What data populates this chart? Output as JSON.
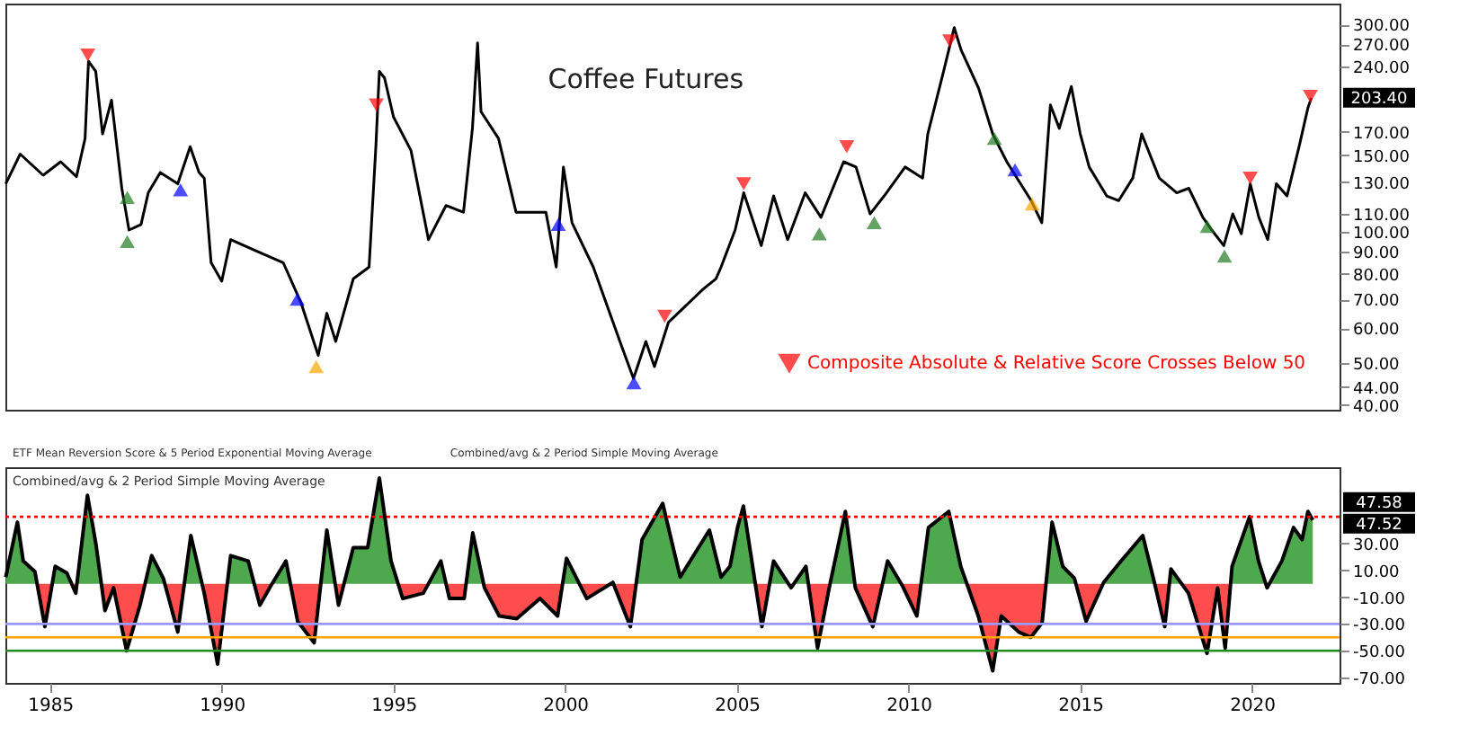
{
  "chart_data": [
    {
      "type": "line",
      "title": "Coffee Futures",
      "xlim": [
        1983.7,
        2022.55
      ],
      "xticks": [
        1985,
        1990,
        1995,
        2000,
        2005,
        2010,
        2015,
        2020
      ],
      "ylim": [
        39,
        335
      ],
      "log": true,
      "yticks": [
        {
          "value": 300,
          "label": "300.00"
        },
        {
          "value": 270,
          "label": "270.00"
        },
        {
          "value": 240,
          "label": "240.00"
        },
        {
          "value": 170,
          "label": "170.00"
        },
        {
          "value": 150,
          "label": "150.00"
        },
        {
          "value": 130,
          "label": "130.00"
        },
        {
          "value": 110,
          "label": "110.00"
        },
        {
          "value": 100,
          "label": "100.00"
        },
        {
          "value": 90,
          "label": "90.00"
        },
        {
          "value": 80,
          "label": "80.00"
        },
        {
          "value": 70,
          "label": "70.00"
        },
        {
          "value": 60,
          "label": "60.00"
        },
        {
          "value": 50,
          "label": "50.00"
        },
        {
          "value": 44,
          "label": "44.00"
        },
        {
          "value": 40,
          "label": "40.00"
        }
      ],
      "tick_labels": "y",
      "legend": "bottom right",
      "annotations": [
        "203.40"
      ],
      "series": [
        {
          "type": "line",
          "color": "#000000",
          "x": [
            1983.71,
            1984.13,
            1984.8,
            1985.31,
            1985.77,
            1986.02,
            1986.12,
            1986.33,
            1986.53,
            1986.79,
            1987.09,
            1987.3,
            1987.65,
            1987.86,
            1988.21,
            1988.72,
            1989.08,
            1989.34,
            1989.49,
            1989.69,
            1990.0,
            1990.26,
            1990.92,
            1991.79,
            1992.3,
            1992.81,
            1993.06,
            1993.32,
            1993.83,
            1994.29,
            1994.49,
            1994.59,
            1994.74,
            1995.0,
            1995.51,
            1995.77,
            1996.02,
            1996.53,
            1997.04,
            1997.3,
            1997.45,
            1997.55,
            1998.06,
            1998.57,
            1999.44,
            1999.74,
            1999.95,
            2000.2,
            2000.82,
            2001.63,
            2001.99,
            2002.35,
            2002.6,
            2003.01,
            2004.03,
            2004.39,
            2004.54,
            2004.95,
            2005.2,
            2005.71,
            2006.07,
            2006.48,
            2006.99,
            2007.45,
            2008.11,
            2008.47,
            2008.88,
            2009.29,
            2009.9,
            2010.41,
            2010.56,
            2011.02,
            2011.33,
            2011.53,
            2012.04,
            2012.45,
            2012.86,
            2013.57,
            2013.88,
            2014.13,
            2014.39,
            2014.74,
            2015.0,
            2015.26,
            2015.77,
            2016.12,
            2016.53,
            2016.79,
            2017.3,
            2017.81,
            2018.16,
            2018.57,
            2018.83,
            2019.18,
            2019.44,
            2019.69,
            2019.95,
            2020.2,
            2020.46,
            2020.71,
            2021.02,
            2021.38,
            2021.63,
            2021.73
          ],
          "values": [
            129,
            151,
            135,
            145,
            134,
            164,
            247,
            234,
            168,
            201,
            126,
            101,
            104,
            123,
            137,
            129,
            157,
            137,
            133,
            85,
            77,
            96,
            91,
            85,
            69,
            52,
            65,
            56,
            78,
            83,
            158,
            234,
            226,
            184,
            154,
            121,
            96,
            115,
            111,
            173,
            272,
            189,
            164,
            111,
            111,
            83,
            141,
            105,
            83,
            55,
            46,
            56,
            49,
            62,
            74,
            78,
            83,
            101,
            123,
            93,
            121,
            96,
            123,
            108,
            145,
            141,
            110,
            121,
            141,
            133,
            168,
            234,
            295,
            262,
            214,
            168,
            145,
            118,
            105,
            196,
            173,
            216,
            168,
            141,
            121,
            118,
            133,
            168,
            133,
            123,
            126,
            108,
            101,
            93,
            110,
            99,
            129,
            108,
            96,
            129,
            121,
            158,
            193,
            203.4
          ]
        },
        {
          "type": "scatter",
          "name": "Composite Absolute & Relative Score Crosses Below 50",
          "color": "#ff0000",
          "marker": "triangle-down",
          "x": [
            1986.1,
            1994.5,
            2002.9,
            2005.2,
            2008.2,
            2011.2,
            2019.95,
            2021.7
          ],
          "values": [
            255,
            196,
            64,
            129,
            157,
            275,
            133,
            205
          ]
        },
        {
          "type": "scatter",
          "color": "#1f7a1f",
          "marker": "triangle",
          "x": [
            1987.25,
            1987.25,
            2007.4,
            2009.0,
            2012.5,
            2018.7,
            2019.2
          ],
          "values": [
            120,
            95,
            99,
            105,
            164,
            103,
            88
          ]
        },
        {
          "type": "scatter",
          "color": "#0000ff",
          "marker": "triangle",
          "x": [
            1988.8,
            1992.2,
            1999.8,
            2002.0,
            2013.1
          ],
          "values": [
            125,
            70,
            104,
            45,
            139
          ]
        },
        {
          "type": "scatter",
          "color": "#ffa500",
          "marker": "triangle",
          "x": [
            1992.75,
            2013.6
          ],
          "values": [
            49,
            116
          ]
        }
      ]
    },
    {
      "type": "area",
      "title": "Combined/avg & 2 Period Simple Moving Average",
      "xlim": [
        1983.7,
        2022.55
      ],
      "xticks": [
        1985,
        1990,
        1995,
        2000,
        2005,
        2010,
        2015,
        2020
      ],
      "ylim": [
        -74,
        87
      ],
      "yticks": [
        {
          "value": 30,
          "label": "30.00"
        },
        {
          "value": 10,
          "label": "10.00"
        },
        {
          "value": -10,
          "label": "-10.00"
        },
        {
          "value": -30,
          "label": "-30.00"
        },
        {
          "value": -50,
          "label": "-50.00"
        },
        {
          "value": -70,
          "label": "-70.00"
        }
      ],
      "ref_lines": [
        {
          "axis": "y",
          "value": 50,
          "color": "#ff0000",
          "line_style": "dotted"
        },
        {
          "axis": "y",
          "value": -30,
          "color": "#9999ff",
          "line_style": "solid"
        },
        {
          "axis": "y",
          "value": -40,
          "color": "#ffa500",
          "line_style": "solid"
        },
        {
          "axis": "y",
          "value": -50,
          "color": "#228b22",
          "line_style": "solid"
        }
      ],
      "annotations": [
        "ETF Mean Reversion Score & 5 Period Exponential Moving Average",
        "Combined/avg & 2 Period Simple Moving Average",
        "47.58",
        "47.52"
      ],
      "series": [
        {
          "color": "#000000",
          "colors": [
            "#4ea84e",
            "#4ea84e",
            "#4ea84e",
            "#4ea84e",
            "#ff4d4d",
            "#4ea84e",
            "#4ea84e",
            "#ff4d4d",
            "#4ea84e",
            "#4ea84e",
            "#ff4d4d",
            "#ff4d4d",
            "#ff4d4d",
            "#ff4d4d",
            "#4ea84e",
            "#4ea84e",
            "#ff4d4d",
            "#4ea84e",
            "#ff4d4d",
            "#ff4d4d",
            "#4ea84e",
            "#4ea84e",
            "#ff4d4d",
            "#ff4d4d",
            "#4ea84e",
            "#ff4d4d",
            "#ff4d4d",
            "#4ea84e",
            "#ff4d4d",
            "#4ea84e",
            "#4ea84e",
            "#4ea84e",
            "#4ea84e",
            "#ff4d4d",
            "#ff4d4d",
            "#4ea84e",
            "#ff4d4d",
            "#ff4d4d",
            "#4ea84e",
            "#ff4d4d",
            "#ff4d4d",
            "#ff4d4d",
            "#ff4d4d",
            "#ff4d4d",
            "#4ea84e",
            "#ff4d4d",
            "#4ea84e",
            "#ff4d4d",
            "#4ea84e",
            "#4ea84e",
            "#4ea84e",
            "#4ea84e",
            "#4ea84e",
            "#4ea84e",
            "#4ea84e",
            "#4ea84e",
            "#ff4d4d",
            "#4ea84e",
            "#ff4d4d",
            "#4ea84e",
            "#ff4d4d",
            "#ff4d4d",
            "#4ea84e",
            "#ff4d4d",
            "#ff4d4d",
            "#4ea84e",
            "#ff4d4d",
            "#ff4d4d",
            "#4ea84e",
            "#4ea84e",
            "#4ea84e",
            "#ff4d4d",
            "#ff4d4d",
            "#ff4d4d",
            "#ff4d4d",
            "#ff4d4d",
            "#ff4d4d",
            "#4ea84e",
            "#4ea84e",
            "#4ea84e",
            "#ff4d4d",
            "#4ea84e",
            "#4ea84e",
            "#4ea84e",
            "#4ea84e",
            "#ff4d4d",
            "#4ea84e",
            "#ff4d4d",
            "#ff4d4d",
            "#ff4d4d",
            "#ff4d4d",
            "#4ea84e",
            "#4ea84e",
            "#4ea84e",
            "#ff4d4d",
            "#4ea84e",
            "#4ea84e",
            "#4ea84e",
            "#4ea84e",
            "#4ea84e"
          ],
          "x": [
            1983.71,
            1984.05,
            1984.22,
            1984.56,
            1984.85,
            1985.15,
            1985.49,
            1985.75,
            1986.09,
            1986.34,
            1986.6,
            1986.85,
            1987.23,
            1987.62,
            1987.96,
            1988.3,
            1988.72,
            1989.1,
            1989.49,
            1989.88,
            1990.26,
            1990.77,
            1991.11,
            1991.44,
            1991.87,
            1992.21,
            1992.69,
            1993.06,
            1993.4,
            1993.83,
            1994.25,
            1994.59,
            1994.93,
            1995.27,
            1995.87,
            1996.38,
            1996.63,
            1997.06,
            1997.31,
            1997.65,
            1998.08,
            1998.59,
            1999.27,
            1999.78,
            2000.04,
            2000.63,
            2001.39,
            2001.9,
            2002.24,
            2002.84,
            2003.35,
            2004.2,
            2004.54,
            2004.8,
            2005.02,
            2005.19,
            2005.73,
            2006.07,
            2006.58,
            2007.01,
            2007.35,
            2007.69,
            2008.16,
            2008.45,
            2008.96,
            2009.39,
            2009.81,
            2010.24,
            2010.58,
            2011.17,
            2011.52,
            2012.03,
            2012.45,
            2012.7,
            2013.21,
            2013.56,
            2013.89,
            2014.18,
            2014.49,
            2014.83,
            2015.17,
            2015.68,
            2016.19,
            2016.82,
            2017.13,
            2017.46,
            2017.64,
            2018.15,
            2018.69,
            2019.0,
            2019.22,
            2019.42,
            2019.93,
            2020.19,
            2020.44,
            2020.87,
            2021.21,
            2021.46,
            2021.63,
            2021.77
          ],
          "values": [
            5,
            46,
            17,
            9,
            -32,
            13,
            8,
            -7,
            66,
            29,
            -20,
            -3,
            -50,
            -16,
            21,
            4,
            -36,
            36,
            -7,
            -60,
            21,
            17,
            -16,
            -1,
            17,
            -28,
            -44,
            40,
            -16,
            27,
            27,
            79,
            17,
            -11,
            -7,
            17,
            -11,
            -11,
            38,
            -3,
            -24,
            -26,
            -11,
            -24,
            19,
            -11,
            1,
            -32,
            33,
            60,
            5,
            40,
            5,
            13,
            42,
            58,
            -32,
            17,
            -3,
            13,
            -48,
            -3,
            54,
            -3,
            -32,
            17,
            -1,
            -24,
            42,
            54,
            13,
            -24,
            -65,
            -24,
            -36,
            -40,
            -29,
            46,
            13,
            4,
            -28,
            1,
            17,
            36,
            4,
            -32,
            11,
            -7,
            -52,
            -3,
            -48,
            13,
            50,
            17,
            -3,
            17,
            42,
            33,
            54,
            47.58
          ]
        }
      ]
    }
  ]
}
